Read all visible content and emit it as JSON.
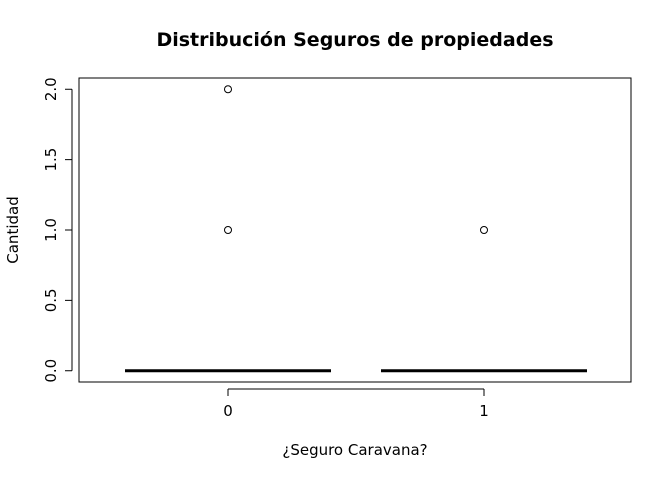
{
  "chart_data": {
    "type": "boxplot",
    "title": "Distribución Seguros de propiedades",
    "xlabel": "¿Seguro Caravana?",
    "ylabel": "Cantidad",
    "categories": [
      "0",
      "1"
    ],
    "ylim": [
      -0.08,
      2.08
    ],
    "y_ticks": [
      0.0,
      0.5,
      1.0,
      1.5,
      2.0
    ],
    "y_tick_labels": [
      "0.0",
      "0.5",
      "1.0",
      "1.5",
      "2.0"
    ],
    "grid": false,
    "boxes": [
      {
        "category": "0",
        "q1": 0,
        "median": 0,
        "q3": 0,
        "whisker_low": 0,
        "whisker_high": 0,
        "outliers": [
          1,
          2
        ]
      },
      {
        "category": "1",
        "q1": 0,
        "median": 0,
        "q3": 0,
        "whisker_low": 0,
        "whisker_high": 0,
        "outliers": [
          1
        ]
      }
    ],
    "colors": {
      "median": "#000000",
      "outlier": "#000000",
      "frame": "#000000"
    }
  }
}
